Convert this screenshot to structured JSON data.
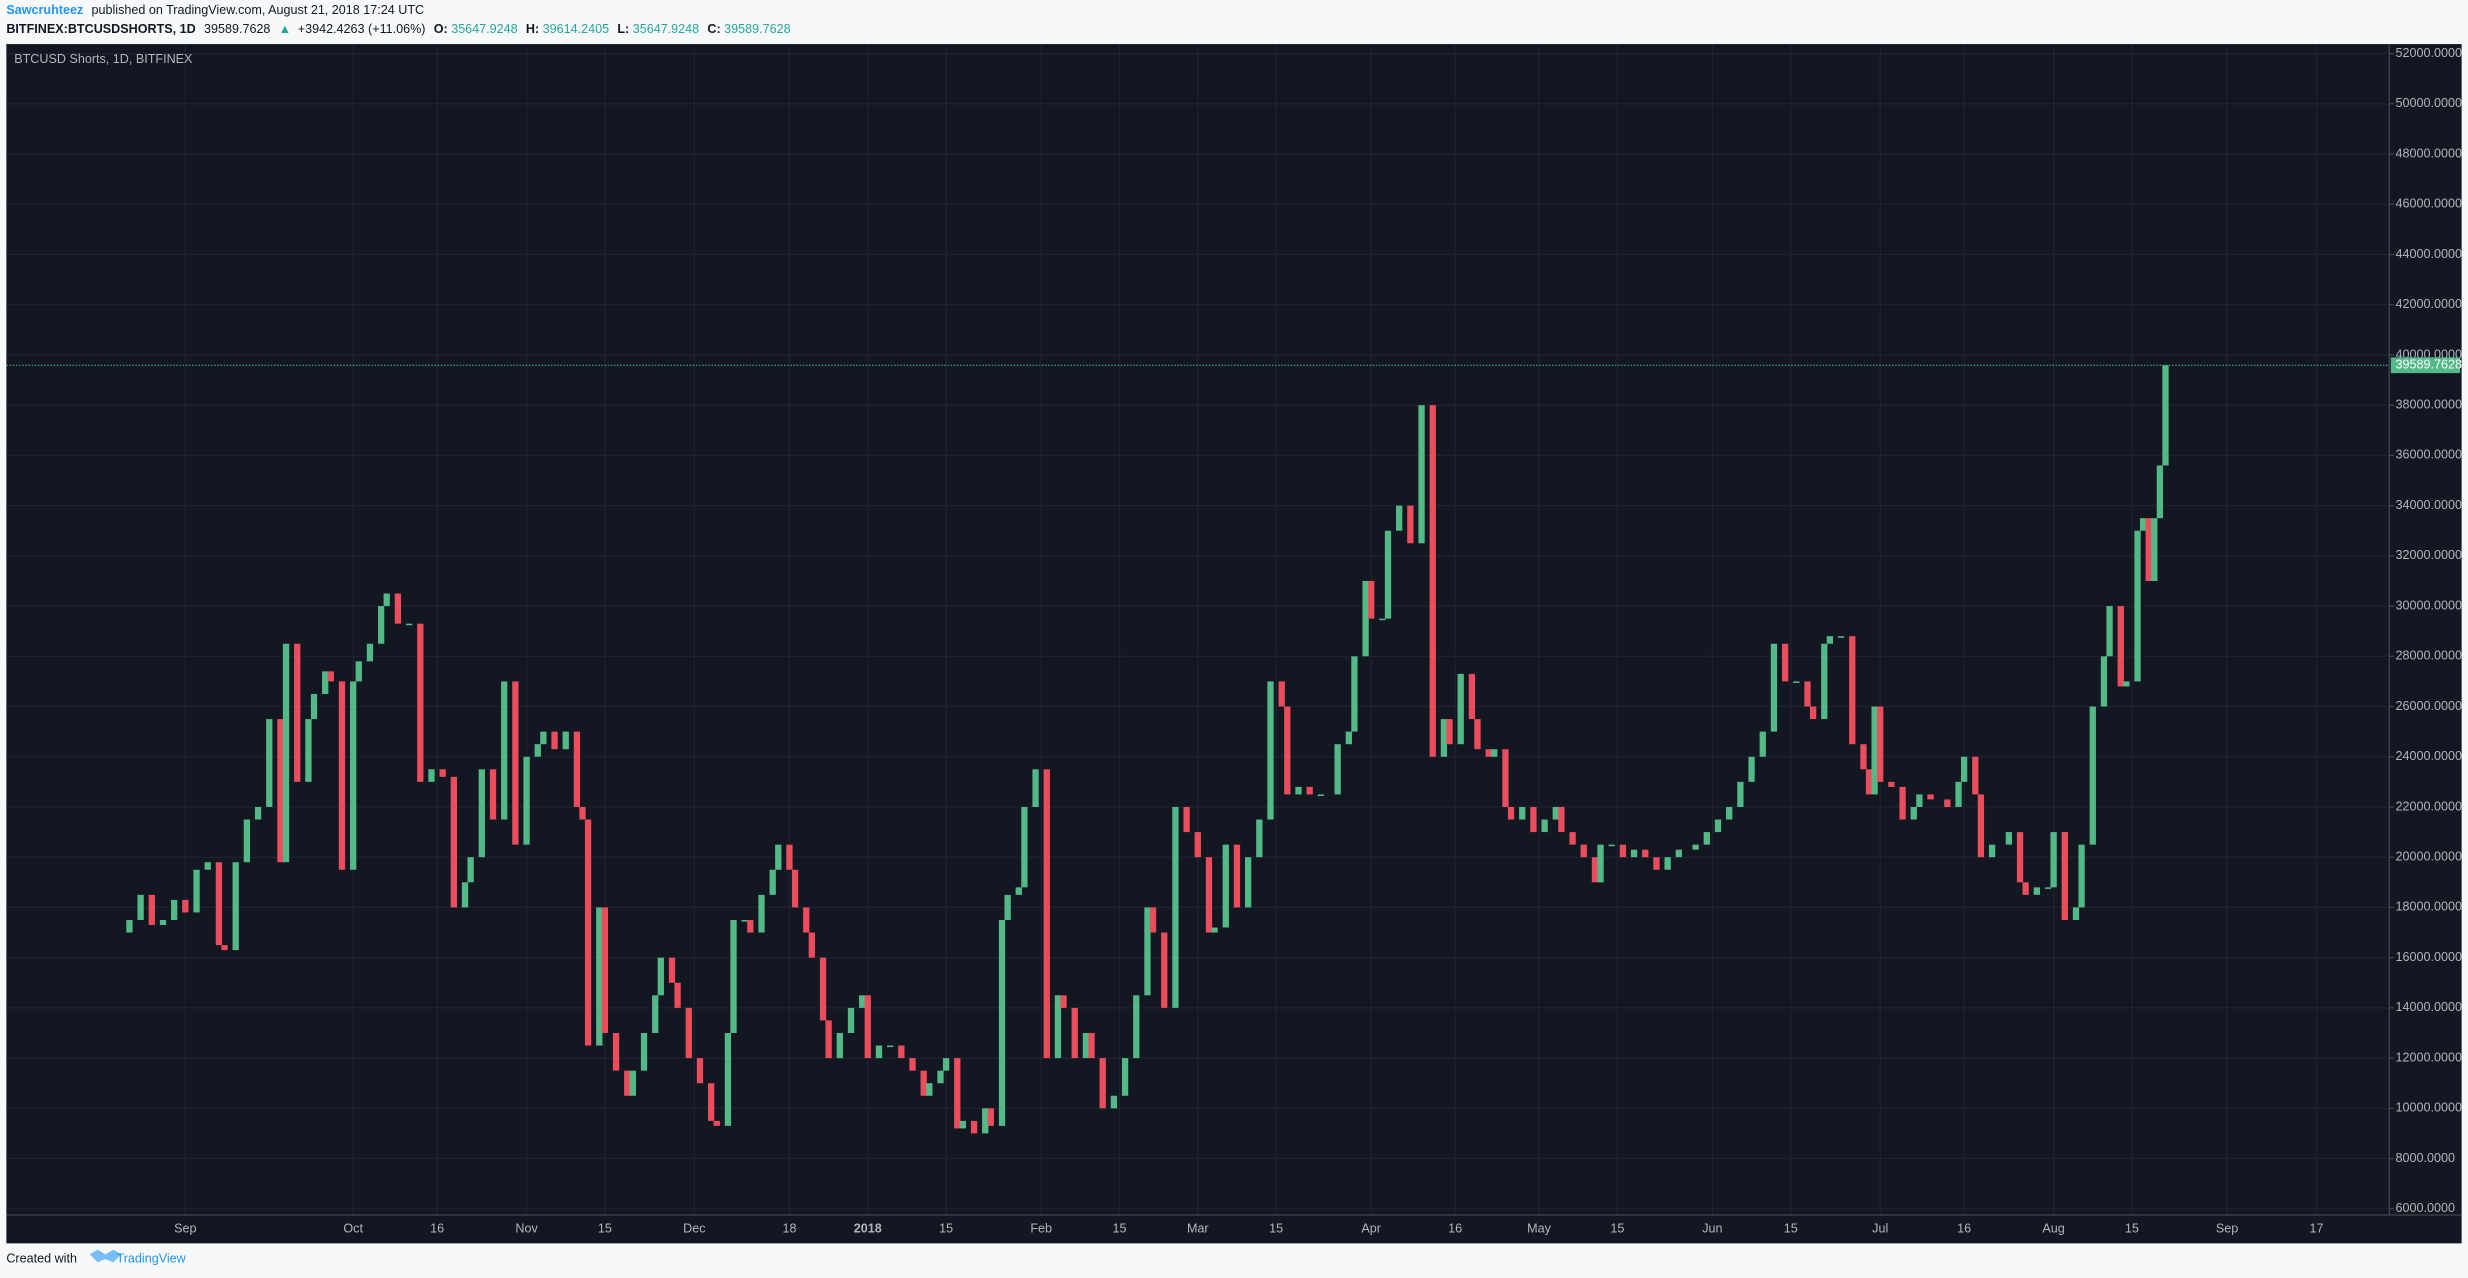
{
  "header": {
    "author": "Sawcruhteez",
    "published": "published on TradingView.com, August 21, 2018 17:24 UTC",
    "symbol": "BITFINEX:BTCUSDSHORTS, 1D",
    "change": "+3942.4263 (+11.06%)",
    "o_label": "O:",
    "o": "35647.9248",
    "h_label": "H:",
    "h": "39614.2405",
    "l_label": "L:",
    "l": "35647.9248",
    "c_label": "C:"
  },
  "footer": {
    "created": "Created with",
    "brand": "TradingView"
  },
  "chart_data": {
    "type": "candlestick",
    "title": "BTCUSD Shorts, 1D, BITFINEX",
    "up_color": "#53b987",
    "down_color": "#eb4d5c",
    "grid": true,
    "open": 17000,
    "x": [
      -10,
      -8,
      -6,
      -4,
      -2,
      0,
      2,
      4,
      6,
      7,
      9,
      11,
      13,
      15,
      17,
      18,
      20,
      22,
      23,
      25,
      26,
      28,
      30,
      31,
      33,
      35,
      36,
      38,
      40,
      42,
      44,
      46,
      48,
      50,
      51,
      53,
      55,
      57,
      59,
      61,
      63,
      64,
      66,
      68,
      70,
      71,
      72,
      74,
      75,
      77,
      79,
      80,
      82,
      84,
      85,
      87,
      88,
      90,
      92,
      94,
      95,
      97,
      98,
      100,
      101,
      103,
      105,
      106,
      108,
      109,
      111,
      112,
      114,
      115,
      117,
      119,
      121,
      122,
      124,
      126,
      128,
      130,
      132,
      133,
      135,
      136,
      138,
      139,
      141,
      143,
      144,
      146,
      147,
      149,
      150,
      152,
      154,
      156,
      157,
      159,
      161,
      162,
      164,
      166,
      168,
      170,
      172,
      173,
      175,
      177,
      179,
      181,
      183,
      184,
      186,
      188,
      190,
      192,
      194,
      196,
      197,
      199,
      201,
      203,
      206,
      208,
      209,
      211,
      212,
      214,
      215,
      217,
      219,
      221,
      223,
      225,
      226,
      228,
      230,
      231,
      233,
      234,
      236,
      237,
      239,
      241,
      243,
      245,
      246,
      248,
      250,
      252,
      253,
      255,
      257,
      259,
      261,
      263,
      265,
      267,
      270,
      272,
      274,
      276,
      278,
      280,
      282,
      284,
      286,
      288,
      290,
      291,
      293,
      294,
      296,
      298,
      300,
      301,
      302,
      303,
      305,
      307,
      309,
      310,
      312,
      315,
      317,
      318,
      320,
      321,
      323,
      326,
      328,
      329,
      331,
      333,
      334,
      336,
      338,
      339,
      341,
      343,
      344,
      346,
      347,
      349,
      350,
      351,
      352,
      353,
      354
    ],
    "close": [
      17500,
      18500,
      17300,
      17500,
      18300,
      17800,
      19500,
      19800,
      16500,
      16300,
      19800,
      21500,
      22000,
      25500,
      19800,
      28500,
      23000,
      25500,
      26500,
      27400,
      27000,
      19500,
      27000,
      27800,
      28500,
      30000,
      30500,
      29300,
      29300,
      23000,
      23500,
      23200,
      18000,
      19000,
      20000,
      23500,
      21500,
      27000,
      20500,
      24000,
      24500,
      25000,
      24300,
      25000,
      22000,
      21500,
      12500,
      18000,
      13000,
      11500,
      10500,
      11500,
      13000,
      14500,
      16000,
      15000,
      14000,
      12000,
      11000,
      9500,
      9300,
      13000,
      17500,
      17500,
      17000,
      18500,
      19500,
      20500,
      19500,
      18000,
      17000,
      16000,
      13500,
      12000,
      13000,
      14000,
      14500,
      12000,
      12500,
      12500,
      12000,
      11500,
      10500,
      11000,
      11500,
      12000,
      9200,
      9500,
      9000,
      10000,
      9300,
      17500,
      18500,
      18800,
      22000,
      23500,
      12000,
      14500,
      14000,
      12000,
      13000,
      12000,
      10000,
      10500,
      12000,
      14500,
      18000,
      17000,
      14000,
      22000,
      21000,
      20000,
      17000,
      17200,
      20500,
      18000,
      20000,
      21500,
      27000,
      26000,
      22500,
      22800,
      22500,
      22500,
      24500,
      25000,
      28000,
      31000,
      29500,
      29500,
      33000,
      34000,
      32500,
      38000,
      24000,
      25500,
      24500,
      27300,
      25500,
      24300,
      24000,
      24300,
      22000,
      21500,
      22000,
      21000,
      21500,
      22000,
      21000,
      20500,
      20000,
      19000,
      20500,
      20500,
      20000,
      20300,
      20000,
      19500,
      20000,
      20300,
      20500,
      21000,
      21500,
      22000,
      23000,
      24000,
      25000,
      28500,
      27000,
      27000,
      26000,
      25500,
      28500,
      28800,
      28800,
      24500,
      23500,
      22500,
      26000,
      23000,
      22800,
      21500,
      22000,
      22500,
      22300,
      22000,
      23000,
      24000,
      22500,
      20000,
      20500,
      21000,
      19000,
      18500,
      18800,
      18800,
      21000,
      17500,
      18000,
      20500,
      26000,
      28000,
      30000,
      26800,
      27000,
      33000,
      33500,
      31000,
      33500,
      35600,
      39589.7628
    ],
    "xlim": [
      -32,
      394
    ],
    "xticks": [
      {
        "value": 0,
        "label": "Sep"
      },
      {
        "value": 30,
        "label": "Oct"
      },
      {
        "value": 45,
        "label": "16"
      },
      {
        "value": 61,
        "label": "Nov"
      },
      {
        "value": 75,
        "label": "15"
      },
      {
        "value": 91,
        "label": "Dec"
      },
      {
        "value": 108,
        "label": "18"
      },
      {
        "value": 122,
        "label": "2018"
      },
      {
        "value": 136,
        "label": "15"
      },
      {
        "value": 153,
        "label": "Feb"
      },
      {
        "value": 167,
        "label": "15"
      },
      {
        "value": 181,
        "label": "Mar"
      },
      {
        "value": 195,
        "label": "15"
      },
      {
        "value": 212,
        "label": "Apr"
      },
      {
        "value": 227,
        "label": "16"
      },
      {
        "value": 242,
        "label": "May"
      },
      {
        "value": 256,
        "label": "15"
      },
      {
        "value": 273,
        "label": "Jun"
      },
      {
        "value": 287,
        "label": "15"
      },
      {
        "value": 303,
        "label": "Jul"
      },
      {
        "value": 318,
        "label": "16"
      },
      {
        "value": 334,
        "label": "Aug"
      },
      {
        "value": 348,
        "label": "15"
      },
      {
        "value": 365,
        "label": "Sep"
      },
      {
        "value": 381,
        "label": "17"
      }
    ],
    "ylim": [
      5750,
      52380
    ],
    "yticks": [
      {
        "value": 6000,
        "label": "6000.0000"
      },
      {
        "value": 8000,
        "label": "8000.0000"
      },
      {
        "value": 10000,
        "label": "10000.0000"
      },
      {
        "value": 12000,
        "label": "12000.0000"
      },
      {
        "value": 14000,
        "label": "14000.0000"
      },
      {
        "value": 16000,
        "label": "16000.0000"
      },
      {
        "value": 18000,
        "label": "18000.0000"
      },
      {
        "value": 20000,
        "label": "20000.0000"
      },
      {
        "value": 22000,
        "label": "22000.0000"
      },
      {
        "value": 24000,
        "label": "24000.0000"
      },
      {
        "value": 26000,
        "label": "26000.0000"
      },
      {
        "value": 28000,
        "label": "28000.0000"
      },
      {
        "value": 30000,
        "label": "30000.0000"
      },
      {
        "value": 32000,
        "label": "32000.0000"
      },
      {
        "value": 34000,
        "label": "34000.0000"
      },
      {
        "value": 36000,
        "label": "36000.0000"
      },
      {
        "value": 38000,
        "label": "38000.0000"
      },
      {
        "value": 40000,
        "label": "40000.0000"
      },
      {
        "value": 42000,
        "label": "42000.0000"
      },
      {
        "value": 44000,
        "label": "44000.0000"
      },
      {
        "value": 46000,
        "label": "46000.0000"
      },
      {
        "value": 48000,
        "label": "48000.0000"
      },
      {
        "value": 50000,
        "label": "50000.0000"
      },
      {
        "value": 52000,
        "label": "52000.0000"
      }
    ]
  }
}
